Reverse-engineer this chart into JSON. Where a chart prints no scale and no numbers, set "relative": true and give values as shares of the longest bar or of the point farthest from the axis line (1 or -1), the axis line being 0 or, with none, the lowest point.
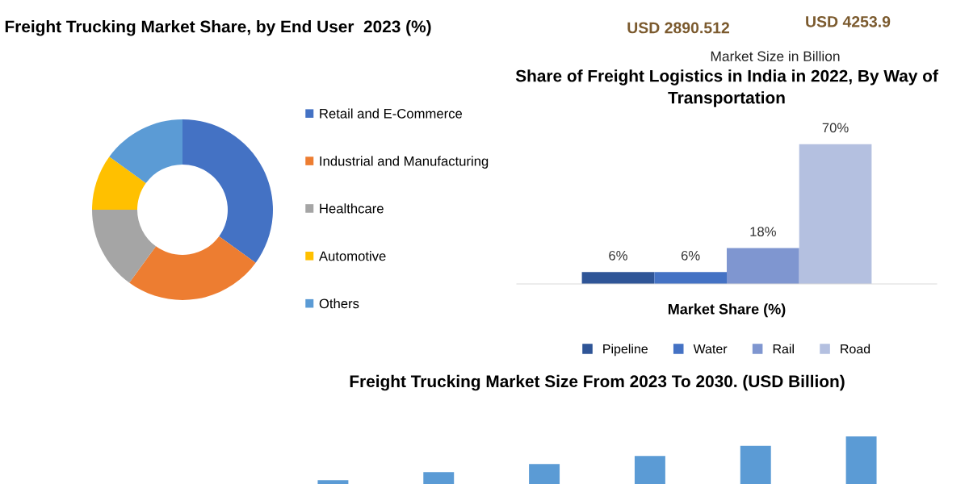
{
  "chart_data": [
    {
      "type": "donut",
      "title": "Freight Trucking Market Share, by End User  2023 (%)",
      "categories": [
        "Retail and E-Commerce",
        "Industrial and Manufacturing",
        "Healthcare",
        "Automotive",
        "Others"
      ],
      "values": [
        35,
        25,
        15,
        10,
        15
      ],
      "colors": [
        "#4472c4",
        "#ed7d31",
        "#a5a5a5",
        "#ffc000",
        "#5b9bd5"
      ],
      "legend": "right"
    },
    {
      "type": "other",
      "annotations": [
        "USD 2890.512",
        "USD 4253.9",
        "Market Size in Billion"
      ]
    },
    {
      "type": "bar",
      "title": "Share of Freight Logistics in India in 2022, By Way of Transportation",
      "xlabel": "Market Share (%)",
      "categories": [
        null
      ],
      "legend": "bottom",
      "series": [
        {
          "name": "Pipeline",
          "color": "#2f5597",
          "values": [
            6
          ],
          "value_labels": [
            "6%"
          ]
        },
        {
          "name": "Water",
          "color": "#4472c4",
          "values": [
            6
          ],
          "value_labels": [
            "6%"
          ]
        },
        {
          "name": "Rail",
          "color": "#7f96d0",
          "values": [
            18
          ],
          "value_labels": [
            "18%"
          ]
        },
        {
          "name": "Road",
          "color": "#b4c0e0",
          "values": [
            70
          ],
          "value_labels": [
            "70%"
          ]
        }
      ]
    },
    {
      "type": "bar",
      "title": "Freight Trucking Market Size From 2023 To 2030. (USD Billion)",
      "relative": true,
      "categories": [
        null,
        null,
        null,
        null,
        null,
        null
      ],
      "color": "#5b9bd5",
      "values": [
        0.08,
        0.25,
        0.42,
        0.59,
        0.8,
        1
      ]
    }
  ]
}
